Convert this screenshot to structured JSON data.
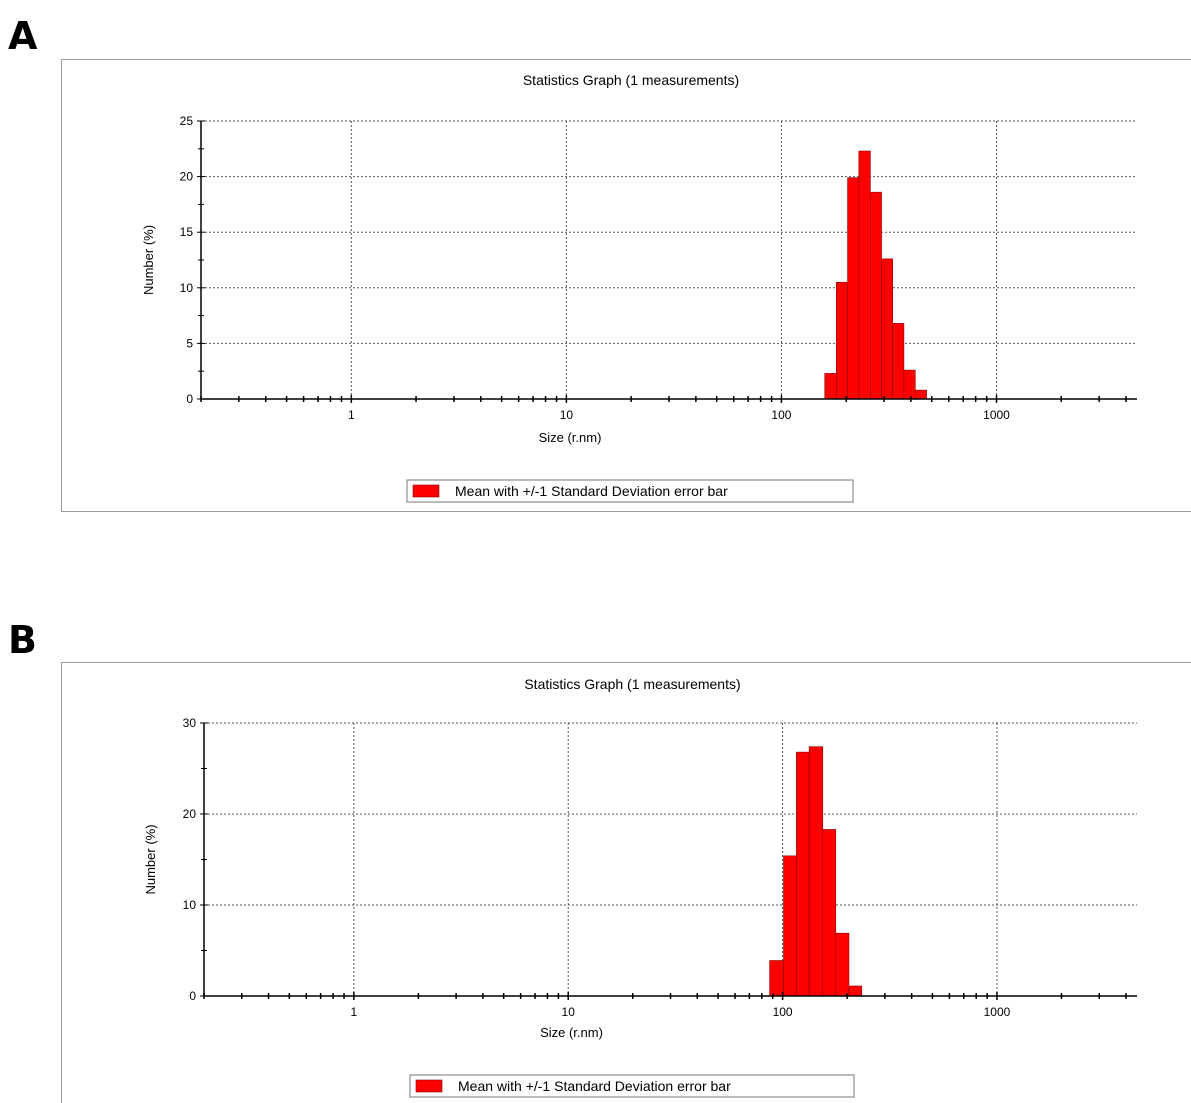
{
  "panels": [
    {
      "letter": "A"
    },
    {
      "letter": "B"
    }
  ],
  "chart_data": [
    {
      "type": "bar",
      "title": "Statistics Graph (1 measurements)",
      "xlabel": "Size (r.nm)",
      "ylabel": "Number (%)",
      "x_scale": "log",
      "xlim": [
        0.2,
        4500
      ],
      "ylim": [
        0,
        25
      ],
      "y_ticks": [
        0,
        5,
        10,
        15,
        20,
        25
      ],
      "y_tick_labels": [
        "0",
        "5",
        "10",
        "15",
        "20",
        "25"
      ],
      "x_ticks": [
        1,
        10,
        100,
        1000
      ],
      "x_tick_labels": [
        "1",
        "10",
        "100",
        "1000"
      ],
      "grid": true,
      "legend": "bottom-center",
      "series": [
        {
          "name": "Mean with +/-1 Standard Deviation error bar",
          "color": "#ff0000",
          "bins": [
            {
              "x0": 159,
              "x1": 180,
              "y": 2.3
            },
            {
              "x0": 180,
              "x1": 203,
              "y": 10.5
            },
            {
              "x0": 203,
              "x1": 229,
              "y": 19.9
            },
            {
              "x0": 229,
              "x1": 259,
              "y": 22.3
            },
            {
              "x0": 259,
              "x1": 292,
              "y": 18.6
            },
            {
              "x0": 292,
              "x1": 329,
              "y": 12.6
            },
            {
              "x0": 329,
              "x1": 371,
              "y": 6.8
            },
            {
              "x0": 371,
              "x1": 419,
              "y": 2.6
            },
            {
              "x0": 419,
              "x1": 473,
              "y": 0.8
            }
          ]
        }
      ]
    },
    {
      "type": "bar",
      "title": "Statistics Graph (1 measurements)",
      "xlabel": "Size (r.nm)",
      "ylabel": "Number (%)",
      "x_scale": "log",
      "xlim": [
        0.2,
        4500
      ],
      "ylim": [
        0,
        30
      ],
      "y_ticks": [
        0,
        10,
        20,
        30
      ],
      "y_tick_labels": [
        "0",
        "10",
        "20",
        "30"
      ],
      "x_ticks": [
        1,
        10,
        100,
        1000
      ],
      "x_tick_labels": [
        "1",
        "10",
        "100",
        "1000"
      ],
      "grid": true,
      "legend": "bottom-center",
      "series": [
        {
          "name": "Mean with +/-1 Standard Deviation error bar",
          "color": "#ff0000",
          "bins": [
            {
              "x0": 87,
              "x1": 101,
              "y": 3.9
            },
            {
              "x0": 101,
              "x1": 116,
              "y": 15.4
            },
            {
              "x0": 116,
              "x1": 133,
              "y": 26.8
            },
            {
              "x0": 133,
              "x1": 154,
              "y": 27.4
            },
            {
              "x0": 154,
              "x1": 177,
              "y": 18.3
            },
            {
              "x0": 177,
              "x1": 204,
              "y": 6.9
            },
            {
              "x0": 204,
              "x1": 234,
              "y": 1.1
            }
          ]
        }
      ]
    }
  ]
}
